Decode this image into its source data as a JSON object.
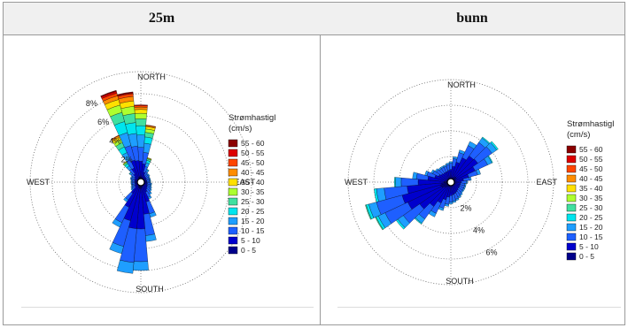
{
  "panels": [
    {
      "title": "25m"
    },
    {
      "title": "bunn"
    }
  ],
  "colors": [
    "#00008b",
    "#0000cd",
    "#1e5fff",
    "#1e9eff",
    "#00e5ee",
    "#40e0a0",
    "#adff2f",
    "#ffe000",
    "#ff8c00",
    "#ff4500",
    "#dd0000",
    "#8b0000"
  ],
  "chart_data": [
    {
      "type": "polar",
      "panel": "25m",
      "compass_labels": {
        "north": "NORTH",
        "south": "SOUTH",
        "east": "EAST",
        "west": "WEST"
      },
      "ring_labels": [
        "2%",
        "4%",
        "6%",
        "8%"
      ],
      "rings": [
        2,
        4,
        6,
        8
      ],
      "rmax": 10,
      "legend_title": [
        "Strømhastigl",
        "(cm/s)"
      ],
      "bins": [
        "55 - 60",
        "50 - 55",
        "45 - 50",
        "40 - 45",
        "35 - 40",
        "30 - 35",
        "25 - 30",
        "20 - 25",
        "15 - 20",
        "10 - 15",
        "5 - 10",
        "0 - 5"
      ],
      "directions_deg": [
        0,
        10,
        20,
        30,
        40,
        50,
        60,
        70,
        80,
        90,
        100,
        110,
        120,
        130,
        140,
        150,
        160,
        170,
        180,
        190,
        200,
        210,
        220,
        230,
        240,
        250,
        260,
        270,
        280,
        290,
        300,
        310,
        320,
        330,
        340,
        350
      ],
      "totals": [
        7.0,
        5.2,
        2.3,
        1.3,
        1.0,
        1.0,
        0.9,
        0.9,
        0.9,
        0.9,
        1.0,
        1.0,
        1.1,
        1.2,
        1.4,
        1.7,
        3.3,
        5.4,
        8.0,
        8.3,
        6.7,
        4.5,
        2.2,
        1.1,
        1.0,
        0.9,
        0.9,
        0.9,
        0.9,
        1.0,
        1.0,
        1.3,
        2.3,
        4.7,
        8.6,
        8.2
      ],
      "fractions_low_to_high": [
        [
          0.07,
          0.2,
          0.18,
          0.16,
          0.12,
          0.09,
          0.07,
          0.05,
          0.03,
          0.02,
          0.01,
          0.0
        ],
        [
          0.08,
          0.24,
          0.2,
          0.16,
          0.11,
          0.08,
          0.06,
          0.04,
          0.02,
          0.01,
          0.0,
          0.0
        ],
        [
          0.1,
          0.3,
          0.24,
          0.15,
          0.1,
          0.06,
          0.03,
          0.02,
          0.0,
          0.0,
          0.0,
          0.0
        ],
        [
          0.12,
          0.4,
          0.3,
          0.14,
          0.04,
          0.0,
          0.0,
          0.0,
          0.0,
          0.0,
          0.0,
          0.0
        ],
        [
          0.15,
          0.45,
          0.3,
          0.1,
          0.0,
          0.0,
          0.0,
          0.0,
          0.0,
          0.0,
          0.0,
          0.0
        ],
        [
          0.15,
          0.45,
          0.3,
          0.1,
          0.0,
          0.0,
          0.0,
          0.0,
          0.0,
          0.0,
          0.0,
          0.0
        ],
        [
          0.15,
          0.45,
          0.3,
          0.1,
          0.0,
          0.0,
          0.0,
          0.0,
          0.0,
          0.0,
          0.0,
          0.0
        ],
        [
          0.15,
          0.45,
          0.3,
          0.1,
          0.0,
          0.0,
          0.0,
          0.0,
          0.0,
          0.0,
          0.0,
          0.0
        ],
        [
          0.15,
          0.45,
          0.3,
          0.1,
          0.0,
          0.0,
          0.0,
          0.0,
          0.0,
          0.0,
          0.0,
          0.0
        ],
        [
          0.15,
          0.45,
          0.3,
          0.1,
          0.0,
          0.0,
          0.0,
          0.0,
          0.0,
          0.0,
          0.0,
          0.0
        ],
        [
          0.15,
          0.45,
          0.3,
          0.1,
          0.0,
          0.0,
          0.0,
          0.0,
          0.0,
          0.0,
          0.0,
          0.0
        ],
        [
          0.15,
          0.45,
          0.3,
          0.1,
          0.0,
          0.0,
          0.0,
          0.0,
          0.0,
          0.0,
          0.0,
          0.0
        ],
        [
          0.15,
          0.45,
          0.3,
          0.1,
          0.0,
          0.0,
          0.0,
          0.0,
          0.0,
          0.0,
          0.0,
          0.0
        ],
        [
          0.14,
          0.45,
          0.31,
          0.1,
          0.0,
          0.0,
          0.0,
          0.0,
          0.0,
          0.0,
          0.0,
          0.0
        ],
        [
          0.13,
          0.45,
          0.32,
          0.1,
          0.0,
          0.0,
          0.0,
          0.0,
          0.0,
          0.0,
          0.0,
          0.0
        ],
        [
          0.12,
          0.46,
          0.32,
          0.1,
          0.0,
          0.0,
          0.0,
          0.0,
          0.0,
          0.0,
          0.0,
          0.0
        ],
        [
          0.1,
          0.46,
          0.34,
          0.1,
          0.0,
          0.0,
          0.0,
          0.0,
          0.0,
          0.0,
          0.0,
          0.0
        ],
        [
          0.08,
          0.46,
          0.36,
          0.1,
          0.0,
          0.0,
          0.0,
          0.0,
          0.0,
          0.0,
          0.0,
          0.0
        ],
        [
          0.07,
          0.46,
          0.37,
          0.1,
          0.0,
          0.0,
          0.0,
          0.0,
          0.0,
          0.0,
          0.0,
          0.0
        ],
        [
          0.07,
          0.44,
          0.37,
          0.12,
          0.0,
          0.0,
          0.0,
          0.0,
          0.0,
          0.0,
          0.0,
          0.0
        ],
        [
          0.08,
          0.46,
          0.36,
          0.1,
          0.0,
          0.0,
          0.0,
          0.0,
          0.0,
          0.0,
          0.0,
          0.0
        ],
        [
          0.1,
          0.46,
          0.34,
          0.1,
          0.0,
          0.0,
          0.0,
          0.0,
          0.0,
          0.0,
          0.0,
          0.0
        ],
        [
          0.12,
          0.45,
          0.33,
          0.1,
          0.0,
          0.0,
          0.0,
          0.0,
          0.0,
          0.0,
          0.0,
          0.0
        ],
        [
          0.15,
          0.45,
          0.3,
          0.1,
          0.0,
          0.0,
          0.0,
          0.0,
          0.0,
          0.0,
          0.0,
          0.0
        ],
        [
          0.15,
          0.45,
          0.3,
          0.1,
          0.0,
          0.0,
          0.0,
          0.0,
          0.0,
          0.0,
          0.0,
          0.0
        ],
        [
          0.15,
          0.45,
          0.3,
          0.1,
          0.0,
          0.0,
          0.0,
          0.0,
          0.0,
          0.0,
          0.0,
          0.0
        ],
        [
          0.15,
          0.45,
          0.3,
          0.1,
          0.0,
          0.0,
          0.0,
          0.0,
          0.0,
          0.0,
          0.0,
          0.0
        ],
        [
          0.15,
          0.45,
          0.3,
          0.1,
          0.0,
          0.0,
          0.0,
          0.0,
          0.0,
          0.0,
          0.0,
          0.0
        ],
        [
          0.15,
          0.45,
          0.3,
          0.1,
          0.0,
          0.0,
          0.0,
          0.0,
          0.0,
          0.0,
          0.0,
          0.0
        ],
        [
          0.15,
          0.45,
          0.3,
          0.1,
          0.0,
          0.0,
          0.0,
          0.0,
          0.0,
          0.0,
          0.0,
          0.0
        ],
        [
          0.15,
          0.45,
          0.3,
          0.1,
          0.0,
          0.0,
          0.0,
          0.0,
          0.0,
          0.0,
          0.0,
          0.0
        ],
        [
          0.12,
          0.42,
          0.3,
          0.12,
          0.04,
          0.0,
          0.0,
          0.0,
          0.0,
          0.0,
          0.0,
          0.0
        ],
        [
          0.1,
          0.3,
          0.24,
          0.15,
          0.1,
          0.06,
          0.03,
          0.02,
          0.0,
          0.0,
          0.0,
          0.0
        ],
        [
          0.08,
          0.22,
          0.18,
          0.15,
          0.12,
          0.09,
          0.07,
          0.05,
          0.03,
          0.01,
          0.0,
          0.0
        ],
        [
          0.06,
          0.18,
          0.16,
          0.14,
          0.12,
          0.1,
          0.08,
          0.06,
          0.04,
          0.03,
          0.02,
          0.01
        ],
        [
          0.06,
          0.18,
          0.16,
          0.14,
          0.12,
          0.1,
          0.08,
          0.06,
          0.05,
          0.03,
          0.01,
          0.01
        ]
      ]
    },
    {
      "type": "polar",
      "panel": "bunn",
      "compass_labels": {
        "north": "NORTH",
        "south": "SOUTH",
        "east": "EAST",
        "west": "WEST"
      },
      "ring_labels": [
        "2%",
        "4%",
        "6%"
      ],
      "rings": [
        2,
        4,
        6
      ],
      "rmax": 8,
      "ring_label_bearing_deg": 150,
      "legend_title": [
        "Strømhastigl",
        "(cm/s)"
      ],
      "bins": [
        "55 - 60",
        "50 - 55",
        "45 - 50",
        "40 - 45",
        "35 - 40",
        "30 - 35",
        "25 - 30",
        "20 - 25",
        "15 - 20",
        "10 - 15",
        "5 - 10",
        "0 - 5"
      ],
      "directions_deg": [
        0,
        10,
        20,
        30,
        40,
        50,
        60,
        70,
        80,
        90,
        100,
        110,
        120,
        130,
        140,
        150,
        160,
        170,
        180,
        190,
        200,
        210,
        220,
        230,
        240,
        250,
        260,
        270,
        280,
        290,
        300,
        310,
        320,
        330,
        340,
        350
      ],
      "totals": [
        1.6,
        2.0,
        2.6,
        3.5,
        4.3,
        4.5,
        3.6,
        2.4,
        1.6,
        1.3,
        1.2,
        1.2,
        1.2,
        1.2,
        1.3,
        1.4,
        1.5,
        1.6,
        1.7,
        1.9,
        2.3,
        3.0,
        4.0,
        5.2,
        6.5,
        6.9,
        6.0,
        4.4,
        3.0,
        2.1,
        1.7,
        1.5,
        1.4,
        1.4,
        1.4,
        1.5
      ],
      "fractions_low_to_high": [
        [
          0.12,
          0.5,
          0.3,
          0.08,
          0.0,
          0.0,
          0.0,
          0.0,
          0.0,
          0.0,
          0.0,
          0.0
        ],
        [
          0.12,
          0.5,
          0.3,
          0.08,
          0.0,
          0.0,
          0.0,
          0.0,
          0.0,
          0.0,
          0.0,
          0.0
        ],
        [
          0.12,
          0.5,
          0.3,
          0.08,
          0.0,
          0.0,
          0.0,
          0.0,
          0.0,
          0.0,
          0.0,
          0.0
        ],
        [
          0.12,
          0.48,
          0.3,
          0.1,
          0.0,
          0.0,
          0.0,
          0.0,
          0.0,
          0.0,
          0.0,
          0.0
        ],
        [
          0.12,
          0.46,
          0.3,
          0.1,
          0.02,
          0.0,
          0.0,
          0.0,
          0.0,
          0.0,
          0.0,
          0.0
        ],
        [
          0.12,
          0.45,
          0.3,
          0.1,
          0.03,
          0.0,
          0.0,
          0.0,
          0.0,
          0.0,
          0.0,
          0.0
        ],
        [
          0.12,
          0.46,
          0.3,
          0.1,
          0.02,
          0.0,
          0.0,
          0.0,
          0.0,
          0.0,
          0.0,
          0.0
        ],
        [
          0.12,
          0.48,
          0.3,
          0.1,
          0.0,
          0.0,
          0.0,
          0.0,
          0.0,
          0.0,
          0.0,
          0.0
        ],
        [
          0.12,
          0.5,
          0.3,
          0.08,
          0.0,
          0.0,
          0.0,
          0.0,
          0.0,
          0.0,
          0.0,
          0.0
        ],
        [
          0.12,
          0.5,
          0.3,
          0.08,
          0.0,
          0.0,
          0.0,
          0.0,
          0.0,
          0.0,
          0.0,
          0.0
        ],
        [
          0.12,
          0.5,
          0.3,
          0.08,
          0.0,
          0.0,
          0.0,
          0.0,
          0.0,
          0.0,
          0.0,
          0.0
        ],
        [
          0.12,
          0.5,
          0.3,
          0.08,
          0.0,
          0.0,
          0.0,
          0.0,
          0.0,
          0.0,
          0.0,
          0.0
        ],
        [
          0.12,
          0.5,
          0.3,
          0.08,
          0.0,
          0.0,
          0.0,
          0.0,
          0.0,
          0.0,
          0.0,
          0.0
        ],
        [
          0.12,
          0.5,
          0.3,
          0.08,
          0.0,
          0.0,
          0.0,
          0.0,
          0.0,
          0.0,
          0.0,
          0.0
        ],
        [
          0.12,
          0.5,
          0.3,
          0.08,
          0.0,
          0.0,
          0.0,
          0.0,
          0.0,
          0.0,
          0.0,
          0.0
        ],
        [
          0.12,
          0.5,
          0.3,
          0.08,
          0.0,
          0.0,
          0.0,
          0.0,
          0.0,
          0.0,
          0.0,
          0.0
        ],
        [
          0.12,
          0.5,
          0.3,
          0.08,
          0.0,
          0.0,
          0.0,
          0.0,
          0.0,
          0.0,
          0.0,
          0.0
        ],
        [
          0.12,
          0.5,
          0.3,
          0.08,
          0.0,
          0.0,
          0.0,
          0.0,
          0.0,
          0.0,
          0.0,
          0.0
        ],
        [
          0.12,
          0.5,
          0.3,
          0.08,
          0.0,
          0.0,
          0.0,
          0.0,
          0.0,
          0.0,
          0.0,
          0.0
        ],
        [
          0.12,
          0.5,
          0.3,
          0.08,
          0.0,
          0.0,
          0.0,
          0.0,
          0.0,
          0.0,
          0.0,
          0.0
        ],
        [
          0.12,
          0.5,
          0.3,
          0.08,
          0.0,
          0.0,
          0.0,
          0.0,
          0.0,
          0.0,
          0.0,
          0.0
        ],
        [
          0.12,
          0.48,
          0.3,
          0.1,
          0.0,
          0.0,
          0.0,
          0.0,
          0.0,
          0.0,
          0.0,
          0.0
        ],
        [
          0.12,
          0.46,
          0.3,
          0.1,
          0.02,
          0.0,
          0.0,
          0.0,
          0.0,
          0.0,
          0.0,
          0.0
        ],
        [
          0.12,
          0.45,
          0.3,
          0.1,
          0.03,
          0.0,
          0.0,
          0.0,
          0.0,
          0.0,
          0.0,
          0.0
        ],
        [
          0.12,
          0.45,
          0.3,
          0.09,
          0.03,
          0.01,
          0.0,
          0.0,
          0.0,
          0.0,
          0.0,
          0.0
        ],
        [
          0.12,
          0.45,
          0.3,
          0.09,
          0.03,
          0.01,
          0.0,
          0.0,
          0.0,
          0.0,
          0.0,
          0.0
        ],
        [
          0.12,
          0.45,
          0.3,
          0.1,
          0.03,
          0.0,
          0.0,
          0.0,
          0.0,
          0.0,
          0.0,
          0.0
        ],
        [
          0.12,
          0.46,
          0.3,
          0.1,
          0.02,
          0.0,
          0.0,
          0.0,
          0.0,
          0.0,
          0.0,
          0.0
        ],
        [
          0.12,
          0.48,
          0.3,
          0.1,
          0.0,
          0.0,
          0.0,
          0.0,
          0.0,
          0.0,
          0.0,
          0.0
        ],
        [
          0.12,
          0.5,
          0.3,
          0.08,
          0.0,
          0.0,
          0.0,
          0.0,
          0.0,
          0.0,
          0.0,
          0.0
        ],
        [
          0.12,
          0.5,
          0.3,
          0.08,
          0.0,
          0.0,
          0.0,
          0.0,
          0.0,
          0.0,
          0.0,
          0.0
        ],
        [
          0.12,
          0.5,
          0.3,
          0.08,
          0.0,
          0.0,
          0.0,
          0.0,
          0.0,
          0.0,
          0.0,
          0.0
        ],
        [
          0.12,
          0.5,
          0.3,
          0.08,
          0.0,
          0.0,
          0.0,
          0.0,
          0.0,
          0.0,
          0.0,
          0.0
        ],
        [
          0.12,
          0.5,
          0.3,
          0.08,
          0.0,
          0.0,
          0.0,
          0.0,
          0.0,
          0.0,
          0.0,
          0.0
        ],
        [
          0.12,
          0.5,
          0.3,
          0.08,
          0.0,
          0.0,
          0.0,
          0.0,
          0.0,
          0.0,
          0.0,
          0.0
        ],
        [
          0.12,
          0.5,
          0.3,
          0.08,
          0.0,
          0.0,
          0.0,
          0.0,
          0.0,
          0.0,
          0.0,
          0.0
        ]
      ]
    }
  ]
}
